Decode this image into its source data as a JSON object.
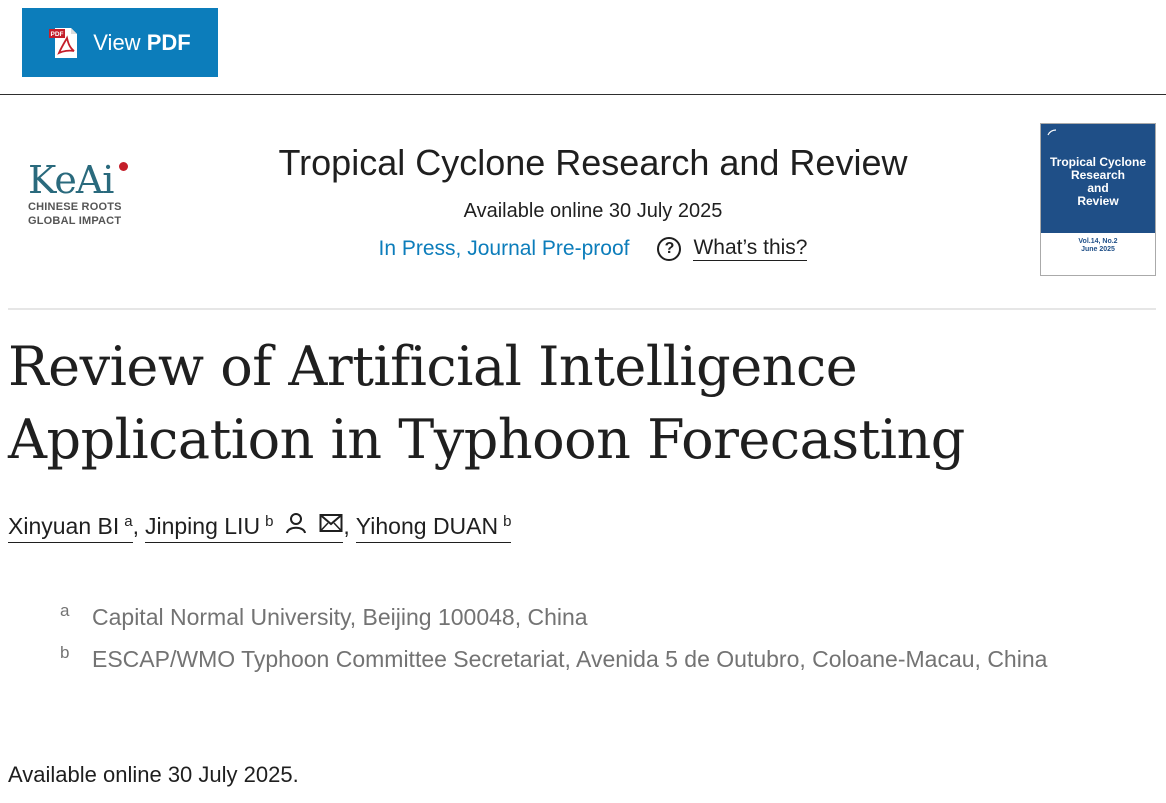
{
  "toolbar": {
    "view_label": "View",
    "pdf_label": "PDF",
    "pdf_icon_text": "PDF"
  },
  "publisher": {
    "logo_word": "KeAi",
    "tagline_1": "CHINESE ROOTS",
    "tagline_2": "GLOBAL IMPACT"
  },
  "journal": {
    "title": "Tropical Cyclone Research and Review",
    "available": "Available online 30 July 2025",
    "status_link": "In Press, Journal Pre-proof",
    "whats_this": "What’s this?",
    "cover_title_lines": [
      "Tropical Cyclone",
      "Research",
      "and",
      "Review"
    ],
    "cover_vol_lines": [
      "Vol.14, No.2",
      "June 2025"
    ]
  },
  "article": {
    "title": "Review of Artificial Intelligence Application in Typhoon Forecasting",
    "authors": [
      {
        "name": "Xinyuan BI",
        "aff": "a"
      },
      {
        "name": "Jinping LIU",
        "aff": "b"
      },
      {
        "name": "Yihong DUAN",
        "aff": "b"
      }
    ],
    "affiliations": [
      {
        "label": "a",
        "text": "Capital Normal University, Beijing 100048, China"
      },
      {
        "label": "b",
        "text": "ESCAP/WMO Typhoon Committee Secretariat, Avenida 5 de Outubro, Coloane-Macau, China"
      }
    ],
    "available_line": "Available online 30 July 2025."
  },
  "colors": {
    "accent": "#0c7dbb",
    "cover_blue": "#1f4f87",
    "keai_teal": "#2a6a7d",
    "keai_red": "#c41e2a"
  },
  "icons": [
    "pdf-icon",
    "question-icon",
    "person-icon",
    "envelope-icon"
  ]
}
